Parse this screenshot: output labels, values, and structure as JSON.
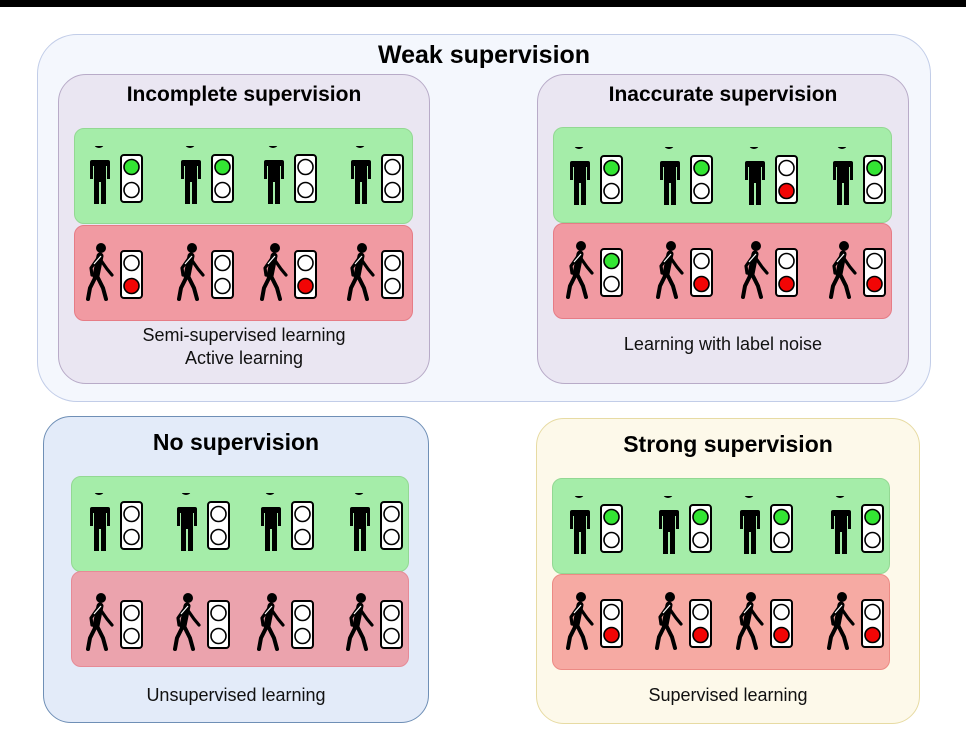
{
  "weak": {
    "title": "Weak supervision",
    "incomplete": {
      "title": "Incomplete supervision",
      "caption_line1": "Semi-supervised learning",
      "caption_line2": "Active learning",
      "standing": [
        "green",
        "green",
        "none",
        "none"
      ],
      "walking": [
        "red",
        "none",
        "red",
        "none"
      ]
    },
    "inaccurate": {
      "title": "Inaccurate supervision",
      "caption": "Learning with label noise",
      "standing": [
        "green",
        "green",
        "red",
        "green"
      ],
      "walking": [
        "green",
        "red",
        "red",
        "red"
      ]
    }
  },
  "none": {
    "title": "No supervision",
    "caption": "Unsupervised learning",
    "standing": [
      "none",
      "none",
      "none",
      "none"
    ],
    "walking": [
      "none",
      "none",
      "none",
      "none"
    ]
  },
  "strong": {
    "title": "Strong supervision",
    "caption": "Supervised learning",
    "standing": [
      "green",
      "green",
      "green",
      "green"
    ],
    "walking": [
      "red",
      "red",
      "red",
      "red"
    ]
  },
  "colors": {
    "green_light": "#33e533",
    "red_light": "#f20505",
    "green_band": "#a5eda9",
    "red_band": "#f19aa2"
  },
  "icons": {
    "standing": "standing-pedestrian-icon",
    "walking": "walking-pedestrian-icon",
    "signal": "traffic-light-icon"
  }
}
